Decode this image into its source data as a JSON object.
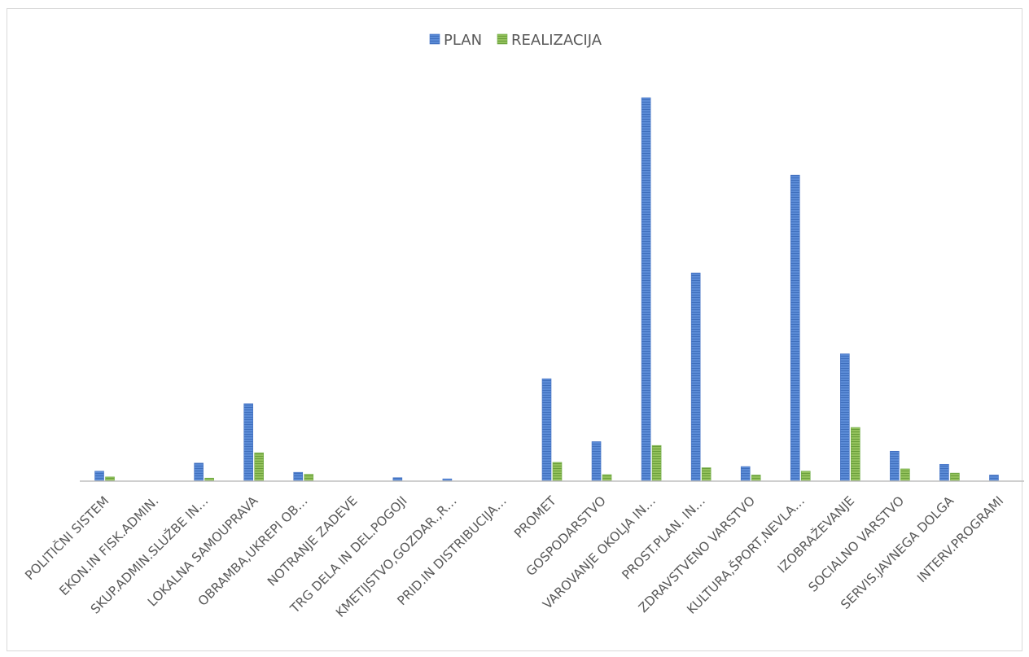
{
  "chart_data": {
    "type": "bar",
    "title": "",
    "xlabel": "",
    "ylabel": "",
    "ylim": [
      0,
      100
    ],
    "grid": false,
    "legend_position": "top-center",
    "categories": [
      "POLITIČNI SISTEM",
      "EKON.IN FISK.ADMIN.",
      "SKUP.ADMIN.SLUŽBE IN…",
      "LOKALNA SAMOUPRAVA",
      "OBRAMBA,UKREPI OB…",
      "NOTRANJE ZADEVE",
      "TRG DELA IN DEL.POGOJI",
      "KMETIJSTVO,GOZDAR.,R…",
      "PRID.IN DISTRIBUCIJA…",
      "PROMET",
      "GOSPODARSTVO",
      "VAROVANJE OKOLJA IN…",
      "PROST.PLAN. IN…",
      "ZDRAVSTVENO VARSTVO",
      "KULTURA,ŠPORT,NEVLA…",
      "IZOBRAŽEVANJE",
      "SOCIALNO VARSTVO",
      "SERVIS.JAVNEGA DOLGA",
      "INTERV.PROGRAMI"
    ],
    "series": [
      {
        "name": "PLAN",
        "color": "#4472c4",
        "values": [
          2.6,
          0,
          4.7,
          20.2,
          2.3,
          0,
          0.9,
          0.6,
          0,
          26.7,
          10.3,
          100,
          54.3,
          3.8,
          79.8,
          33.2,
          7.8,
          4.4,
          1.6
        ]
      },
      {
        "name": "REALIZACIJA",
        "color": "#70ad47",
        "values": [
          1.1,
          0,
          0.8,
          7.4,
          1.8,
          0,
          0,
          0,
          0,
          4.9,
          1.7,
          9.3,
          3.5,
          1.6,
          2.6,
          14.0,
          3.2,
          2.1,
          0
        ]
      }
    ]
  }
}
